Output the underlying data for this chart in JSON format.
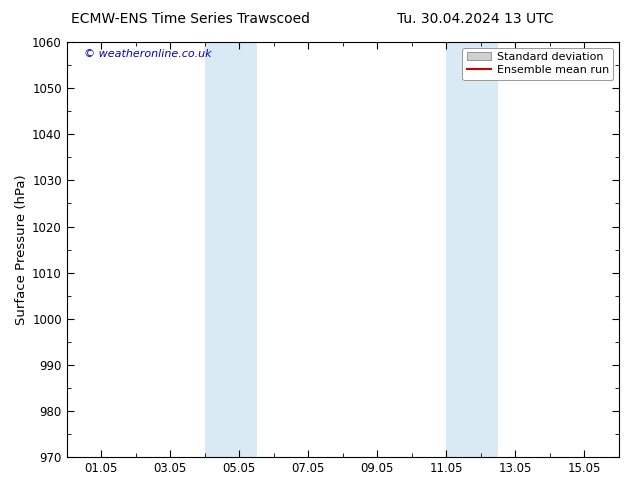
{
  "title_left": "ECMW-ENS Time Series Trawscoed",
  "title_right": "Tu. 30.04.2024 13 UTC",
  "ylabel": "Surface Pressure (hPa)",
  "ylim": [
    970,
    1060
  ],
  "yticks": [
    970,
    980,
    990,
    1000,
    1010,
    1020,
    1030,
    1040,
    1050,
    1060
  ],
  "xtick_labels": [
    "01.05",
    "03.05",
    "05.05",
    "07.05",
    "09.05",
    "11.05",
    "13.05",
    "15.05"
  ],
  "xtick_positions": [
    1,
    3,
    5,
    7,
    9,
    11,
    13,
    15
  ],
  "xlim": [
    0,
    16
  ],
  "shaded_bands": [
    {
      "x_start": 4.0,
      "x_end": 5.5
    },
    {
      "x_start": 11.0,
      "x_end": 12.5
    }
  ],
  "shade_color": "#daeaf5",
  "watermark_text": "© weatheronline.co.uk",
  "watermark_color": "#0000cc",
  "legend_std_label": "Standard deviation",
  "legend_mean_label": "Ensemble mean run",
  "legend_std_facecolor": "#d0d0d0",
  "legend_std_edgecolor": "#888888",
  "legend_mean_color": "#cc0000",
  "bg_color": "#ffffff",
  "title_fontsize": 10,
  "tick_fontsize": 8.5,
  "ylabel_fontsize": 9.5,
  "watermark_fontsize": 8,
  "legend_fontsize": 8
}
